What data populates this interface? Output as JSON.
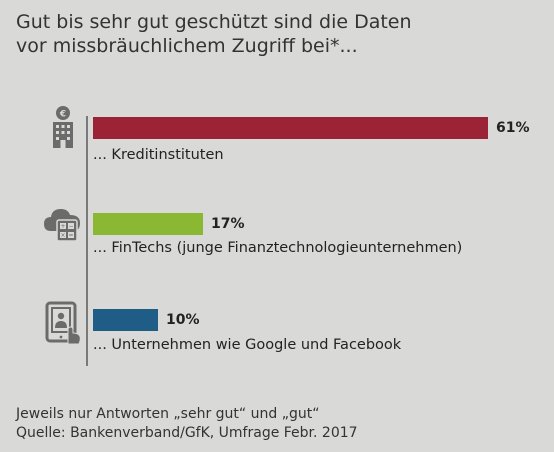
{
  "title": {
    "line1": "Gut bis sehr gut geschützt sind die Daten",
    "line2": "vor missbräuchlichem Zugriff bei*..."
  },
  "icons": [
    {
      "name": "bank-building-icon",
      "depicts": "building with euro sign"
    },
    {
      "name": "cloud-calculator-icon",
      "depicts": "cloud with calculator"
    },
    {
      "name": "tablet-touch-icon",
      "depicts": "tablet with hand and person"
    }
  ],
  "chart_data": {
    "type": "bar",
    "orientation": "horizontal",
    "categories": [
      "... Kreditinstituten",
      "... FinTechs (junge Finanztechnologieunternehmen)",
      "... Unternehmen wie Google und Facebook"
    ],
    "values": [
      61,
      17,
      10
    ],
    "value_labels": [
      "61%",
      "17%",
      "10%"
    ],
    "colors": [
      "#9b2335",
      "#8ab833",
      "#1f5c86"
    ],
    "xlim": [
      0,
      61
    ],
    "title": "Gut bis sehr gut geschützt sind die Daten vor missbräuchlichem Zugriff bei*...",
    "xlabel": "",
    "ylabel": "",
    "grid": false
  },
  "footnotes": {
    "line1": "Jeweils nur Antworten „sehr gut“ und „gut“",
    "line2": "Quelle: Bankenverband/GfK, Umfrage Febr. 2017"
  }
}
